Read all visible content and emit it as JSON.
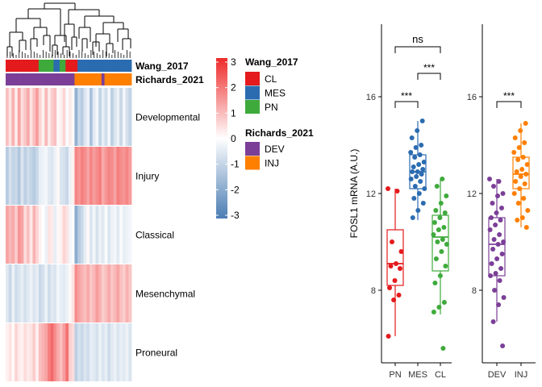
{
  "chart_data": [
    {
      "type": "heatmap",
      "title": "",
      "row_labels": [
        "Developmental",
        "Injury",
        "Classical",
        "Mesenchymal",
        "Proneural"
      ],
      "column_annotations": [
        {
          "name": "Wang_2017",
          "values": [
            "CL",
            "CL",
            "CL",
            "CL",
            "CL",
            "CL",
            "CL",
            "CL",
            "CL",
            "CL",
            "CL",
            "PN",
            "PN",
            "PN",
            "PN",
            "PN",
            "MES",
            "MES",
            "PN",
            "PN",
            "CL",
            "CL",
            "CL",
            "CL",
            "MES",
            "MES",
            "MES",
            "MES",
            "MES",
            "MES",
            "MES",
            "MES",
            "MES",
            "MES",
            "MES",
            "MES",
            "MES",
            "MES",
            "MES",
            "MES",
            "MES",
            "MES"
          ]
        },
        {
          "name": "Richards_2021",
          "values": [
            "DEV",
            "DEV",
            "DEV",
            "DEV",
            "DEV",
            "DEV",
            "DEV",
            "DEV",
            "DEV",
            "DEV",
            "DEV",
            "DEV",
            "DEV",
            "DEV",
            "DEV",
            "DEV",
            "DEV",
            "DEV",
            "DEV",
            "DEV",
            "DEV",
            "DEV",
            "DEV",
            "INJ",
            "INJ",
            "INJ",
            "INJ",
            "INJ",
            "INJ",
            "INJ",
            "INJ",
            "INJ",
            "DEV",
            "INJ",
            "INJ",
            "INJ",
            "INJ",
            "INJ",
            "INJ",
            "INJ",
            "INJ",
            "INJ"
          ]
        }
      ],
      "legend": [
        {
          "title": "Wang_2017",
          "entries": [
            {
              "label": "CL",
              "color": "#E41A1C"
            },
            {
              "label": "MES",
              "color": "#2B6CB0"
            },
            {
              "label": "PN",
              "color": "#3FAA3C"
            }
          ]
        },
        {
          "title": "Richards_2021",
          "entries": [
            {
              "label": "DEV",
              "color": "#7B3F98"
            },
            {
              "label": "INJ",
              "color": "#FF7F00"
            }
          ]
        }
      ],
      "color_scale": {
        "min": -3,
        "max": 3,
        "ticks": [
          3,
          2,
          1,
          0,
          -1,
          -2,
          -3
        ],
        "low_color": "#4A7DB3",
        "mid_color": "#FFFFFF",
        "high_color": "#EE2A2A"
      },
      "values": [
        [
          0.9,
          0.4,
          1.1,
          0.3,
          1.3,
          0.5,
          0.8,
          1.2,
          0.4,
          0.9,
          1.4,
          0.6,
          0.2,
          1.0,
          0.3,
          0.7,
          0.9,
          0.1,
          0.2,
          0.6,
          -0.1,
          0.3,
          0.1,
          -1.8,
          -0.9,
          -1.2,
          -0.6,
          -0.3,
          -1.4,
          -0.5,
          -0.2,
          -1.0,
          -0.4,
          -0.8,
          -0.2,
          -1.1,
          -0.6,
          -0.3,
          -0.9,
          -0.2,
          -0.7,
          -1.0
        ],
        [
          -1.2,
          -0.7,
          -1.0,
          -0.9,
          -1.3,
          -0.6,
          -1.1,
          -0.8,
          -1.0,
          -1.2,
          -0.9,
          -0.4,
          -0.3,
          -0.2,
          -0.5,
          -0.6,
          -0.3,
          0.1,
          -0.6,
          -0.7,
          -0.9,
          -0.3,
          0.2,
          1.7,
          1.5,
          1.8,
          1.6,
          1.3,
          1.7,
          1.4,
          1.6,
          1.8,
          1.2,
          1.5,
          1.7,
          1.6,
          1.3,
          1.8,
          1.6,
          1.5,
          1.7,
          1.4
        ],
        [
          1.3,
          1.0,
          1.2,
          0.7,
          1.5,
          1.3,
          0.5,
          0.9,
          0.3,
          1.1,
          0.6,
          0.2,
          0.0,
          -0.3,
          0.4,
          0.3,
          -0.4,
          0.1,
          0.2,
          0.6,
          0.4,
          -0.2,
          0.0,
          -1.9,
          -1.2,
          -0.9,
          -0.4,
          0.1,
          -0.6,
          -0.2,
          -0.7,
          -0.3,
          -0.5,
          -0.1,
          -0.6,
          -0.3,
          -0.2,
          -0.5,
          -0.1,
          -0.4,
          -0.3,
          -0.2
        ],
        [
          -0.5,
          -0.9,
          -0.3,
          -0.8,
          -0.6,
          -0.4,
          -0.7,
          -0.5,
          -0.3,
          -0.6,
          -0.4,
          -0.9,
          -0.7,
          -0.3,
          -0.8,
          -0.5,
          -0.6,
          -0.2,
          -0.4,
          -0.5,
          -0.3,
          0.1,
          0.4,
          1.6,
          1.3,
          1.1,
          0.9,
          1.2,
          0.8,
          1.0,
          1.4,
          1.1,
          0.7,
          0.9,
          1.2,
          0.8,
          1.0,
          1.3,
          0.9,
          0.7,
          1.1,
          0.8
        ],
        [
          0.2,
          0.4,
          0.1,
          0.6,
          0.3,
          0.2,
          0.5,
          0.3,
          0.4,
          0.7,
          0.2,
          0.9,
          1.1,
          1.3,
          1.8,
          2.1,
          1.6,
          1.2,
          0.9,
          1.4,
          2.0,
          0.7,
          0.5,
          -1.1,
          -0.7,
          -0.9,
          -0.6,
          -0.8,
          -0.4,
          -0.5,
          -0.7,
          -0.3,
          -0.6,
          -0.4,
          -0.8,
          -0.5,
          -0.3,
          -0.6,
          -0.4,
          -0.5,
          -0.3,
          -0.6
        ]
      ]
    },
    {
      "type": "box",
      "title": "",
      "ylabel": "FOSL1 mRNA (A.U.)",
      "ylim": [
        5,
        19
      ],
      "yticks": [
        8,
        12,
        16
      ],
      "categories": [
        "PN",
        "MES",
        "CL"
      ],
      "colors": [
        "#E41A1C",
        "#2B6CB0",
        "#3FAA3C"
      ],
      "boxes": [
        {
          "label": "PN",
          "min": 6.1,
          "q1": 8.2,
          "median": 9.1,
          "q3": 10.5,
          "max": 12.2
        },
        {
          "label": "MES",
          "min": 10.9,
          "q1": 12.2,
          "median": 12.9,
          "q3": 13.6,
          "max": 15.0
        },
        {
          "label": "CL",
          "min": 7.0,
          "q1": 8.8,
          "median": 10.2,
          "q3": 11.1,
          "max": 12.6
        }
      ],
      "points": {
        "PN": [
          12.2,
          12.1,
          10.0,
          9.6,
          9.1,
          9.0,
          8.9,
          8.4,
          8.1,
          7.8,
          7.6,
          6.1
        ],
        "MES": [
          15.0,
          14.6,
          14.3,
          14.0,
          13.9,
          13.7,
          13.6,
          13.5,
          13.3,
          13.2,
          13.1,
          13.0,
          12.9,
          12.9,
          12.8,
          12.7,
          12.6,
          12.5,
          12.3,
          12.2,
          12.0,
          11.8,
          11.6,
          11.3,
          11.0
        ],
        "CL": [
          12.6,
          12.3,
          11.9,
          11.6,
          11.3,
          11.2,
          11.0,
          10.8,
          10.6,
          10.5,
          10.3,
          10.1,
          10.0,
          9.9,
          9.6,
          9.3,
          9.0,
          8.6,
          8.3,
          7.5,
          7.3,
          7.1,
          5.6
        ]
      },
      "comparisons": [
        {
          "groups": [
            "PN",
            "MES"
          ],
          "label": "***"
        },
        {
          "groups": [
            "PN",
            "CL"
          ],
          "label": "ns"
        },
        {
          "groups": [
            "MES",
            "CL"
          ],
          "label": "***"
        }
      ]
    },
    {
      "type": "box",
      "title": "",
      "ylabel": "",
      "ylim": [
        5,
        19
      ],
      "yticks": [
        8,
        12,
        16
      ],
      "categories": [
        "DEV",
        "INJ"
      ],
      "colors": [
        "#7B3F98",
        "#FF7F00"
      ],
      "boxes": [
        {
          "label": "DEV",
          "min": 6.7,
          "q1": 8.6,
          "median": 9.9,
          "q3": 11.0,
          "max": 12.6
        },
        {
          "label": "INJ",
          "min": 10.6,
          "q1": 12.2,
          "median": 12.8,
          "q3": 13.5,
          "max": 14.9
        }
      ],
      "points": {
        "DEV": [
          12.6,
          12.5,
          12.3,
          12.0,
          11.9,
          11.6,
          11.4,
          11.2,
          11.0,
          10.9,
          10.7,
          10.5,
          10.3,
          10.1,
          10.0,
          9.9,
          9.7,
          9.5,
          9.3,
          9.1,
          8.9,
          8.7,
          8.6,
          8.4,
          8.0,
          7.7,
          7.4,
          6.7,
          5.7
        ],
        "INJ": [
          14.9,
          14.6,
          14.3,
          14.1,
          13.9,
          13.7,
          13.5,
          13.4,
          13.2,
          13.0,
          12.9,
          12.8,
          12.7,
          12.5,
          12.4,
          12.2,
          12.0,
          11.8,
          11.6,
          11.3,
          11.0,
          10.9,
          10.6
        ]
      },
      "comparisons": [
        {
          "groups": [
            "DEV",
            "INJ"
          ],
          "label": "***"
        }
      ]
    }
  ]
}
